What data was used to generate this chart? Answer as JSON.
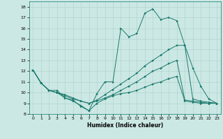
{
  "xlabel": "Humidex (Indice chaleur)",
  "bg_color": "#cce8e4",
  "line_color": "#1a7a6e",
  "grid_color": "#aacfca",
  "xlim": [
    -0.5,
    23.5
  ],
  "ylim": [
    8,
    18.5
  ],
  "yticks": [
    8,
    9,
    10,
    11,
    12,
    13,
    14,
    15,
    16,
    17,
    18
  ],
  "xticks": [
    0,
    1,
    2,
    3,
    4,
    5,
    6,
    7,
    8,
    9,
    10,
    11,
    12,
    13,
    14,
    15,
    16,
    17,
    18,
    19,
    20,
    21,
    22,
    23
  ],
  "lines": [
    {
      "x": [
        0,
        1,
        2,
        3,
        4,
        5,
        6,
        7,
        8,
        9,
        10,
        11,
        12,
        13,
        14,
        15,
        16,
        17,
        18,
        19,
        20,
        21,
        22,
        23
      ],
      "y": [
        12.1,
        10.9,
        10.2,
        10.2,
        9.5,
        9.3,
        8.7,
        8.3,
        9.9,
        11.0,
        11.0,
        16.0,
        15.2,
        15.5,
        17.4,
        17.8,
        16.8,
        17.0,
        16.7,
        14.4,
        12.3,
        10.6,
        9.4,
        9.0
      ]
    },
    {
      "x": [
        0,
        1,
        2,
        3,
        4,
        5,
        6,
        7,
        8,
        9,
        10,
        11,
        12,
        13,
        14,
        15,
        16,
        17,
        18,
        19,
        20,
        21,
        22,
        23
      ],
      "y": [
        12.1,
        10.9,
        10.2,
        10.0,
        9.8,
        9.5,
        9.2,
        9.0,
        9.3,
        9.8,
        10.3,
        10.8,
        11.3,
        11.8,
        12.5,
        13.0,
        13.5,
        14.0,
        14.4,
        14.4,
        9.4,
        9.2,
        9.1,
        9.0
      ]
    },
    {
      "x": [
        0,
        1,
        2,
        3,
        4,
        5,
        6,
        7,
        8,
        9,
        10,
        11,
        12,
        13,
        14,
        15,
        16,
        17,
        18,
        19,
        20,
        21,
        22,
        23
      ],
      "y": [
        12.1,
        10.9,
        10.2,
        10.0,
        9.7,
        9.4,
        9.2,
        9.0,
        9.2,
        9.5,
        9.8,
        10.2,
        10.6,
        11.0,
        11.5,
        12.0,
        12.3,
        12.7,
        13.0,
        9.3,
        9.2,
        9.1,
        9.0,
        9.0
      ]
    },
    {
      "x": [
        0,
        1,
        2,
        3,
        4,
        5,
        6,
        7,
        8,
        9,
        10,
        11,
        12,
        13,
        14,
        15,
        16,
        17,
        18,
        19,
        20,
        21,
        22,
        23
      ],
      "y": [
        12.1,
        10.9,
        10.2,
        10.0,
        9.5,
        9.2,
        8.8,
        8.3,
        9.0,
        9.4,
        9.7,
        9.9,
        10.0,
        10.2,
        10.5,
        10.8,
        11.0,
        11.3,
        11.5,
        9.2,
        9.1,
        9.0,
        9.0,
        9.0
      ]
    }
  ]
}
